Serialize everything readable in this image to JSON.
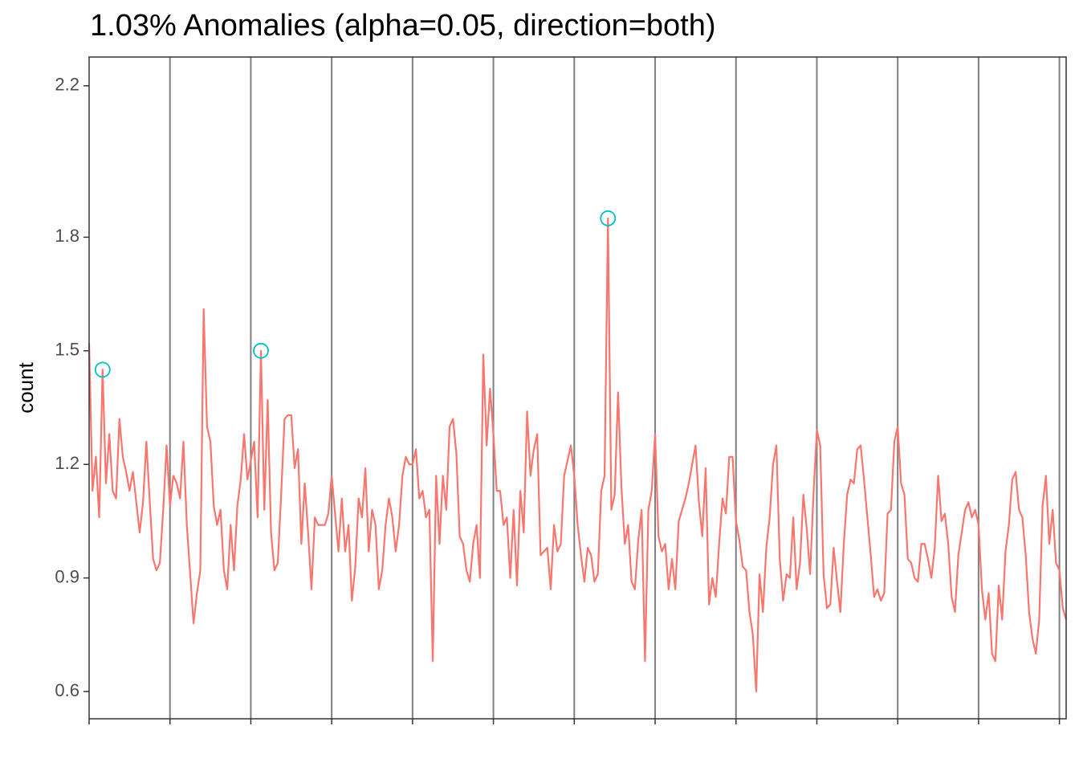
{
  "chart_data": {
    "type": "line",
    "title": "1.03% Anomalies (alpha=0.05, direction=both)",
    "y_label": "count",
    "ylim": [
      0.528,
      2.276
    ],
    "yticks": [
      {
        "value": 0.6,
        "label": "0.6"
      },
      {
        "value": 0.9,
        "label": "0.9"
      },
      {
        "value": 1.2,
        "label": "1.2"
      },
      {
        "value": 1.5,
        "label": "1.5"
      },
      {
        "value": 1.8,
        "label": "1.8"
      },
      {
        "value": 2.2,
        "label": "2.2"
      }
    ],
    "series": [
      {
        "color": "#F8766D",
        "values": [
          1.52,
          1.13,
          1.22,
          1.06,
          1.45,
          1.15,
          1.28,
          1.13,
          1.11,
          1.32,
          1.22,
          1.18,
          1.13,
          1.18,
          1.1,
          1.02,
          1.1,
          1.26,
          1.1,
          0.95,
          0.92,
          0.94,
          1.08,
          1.25,
          1.09,
          1.17,
          1.15,
          1.11,
          1.26,
          1.04,
          0.91,
          0.78,
          0.86,
          0.92,
          1.61,
          1.3,
          1.26,
          1.09,
          1.04,
          1.08,
          0.92,
          0.87,
          1.04,
          0.92,
          1.09,
          1.16,
          1.28,
          1.16,
          1.21,
          1.26,
          1.06,
          1.5,
          1.08,
          1.37,
          1.02,
          0.92,
          0.94,
          1.12,
          1.32,
          1.33,
          1.33,
          1.19,
          1.24,
          0.99,
          1.15,
          1.02,
          0.87,
          1.06,
          1.04,
          1.04,
          1.04,
          1.07,
          1.17,
          1.07,
          0.97,
          1.11,
          0.97,
          1.04,
          0.84,
          0.93,
          1.11,
          1.06,
          1.19,
          0.97,
          1.08,
          1.04,
          0.87,
          0.92,
          1.04,
          1.11,
          1.06,
          0.97,
          1.04,
          1.17,
          1.22,
          1.2,
          1.2,
          1.24,
          1.11,
          1.13,
          1.06,
          1.08,
          0.68,
          1.17,
          0.99,
          1.17,
          1.08,
          1.3,
          1.32,
          1.23,
          1.01,
          0.99,
          0.92,
          0.89,
          0.99,
          1.04,
          0.9,
          1.49,
          1.25,
          1.4,
          1.28,
          1.13,
          1.13,
          1.04,
          1.06,
          0.9,
          1.08,
          0.88,
          1.13,
          1.02,
          1.34,
          1.17,
          1.24,
          1.28,
          0.96,
          0.97,
          0.98,
          0.87,
          1.04,
          0.97,
          0.99,
          1.17,
          1.21,
          1.25,
          1.17,
          1.04,
          0.96,
          0.89,
          0.98,
          0.96,
          0.89,
          0.91,
          1.13,
          1.17,
          1.85,
          1.08,
          1.12,
          1.39,
          1.14,
          0.99,
          1.04,
          0.89,
          0.87,
          1.0,
          1.08,
          0.68,
          1.08,
          1.13,
          1.28,
          1.01,
          0.97,
          0.99,
          0.87,
          0.95,
          0.87,
          1.05,
          1.08,
          1.11,
          1.15,
          1.2,
          1.25,
          1.1,
          1.01,
          1.19,
          0.83,
          0.9,
          0.85,
          0.99,
          1.11,
          1.07,
          1.22,
          1.22,
          1.05,
          1.0,
          0.93,
          0.92,
          0.81,
          0.75,
          0.6,
          0.91,
          0.81,
          0.98,
          1.06,
          1.2,
          1.25,
          0.95,
          0.84,
          0.91,
          0.9,
          1.06,
          0.87,
          0.94,
          1.12,
          1.03,
          0.91,
          1.12,
          1.29,
          1.25,
          0.91,
          0.82,
          0.83,
          0.98,
          0.89,
          0.81,
          0.99,
          1.12,
          1.16,
          1.15,
          1.24,
          1.25,
          1.16,
          1.06,
          0.96,
          0.85,
          0.87,
          0.84,
          0.86,
          1.07,
          1.08,
          1.26,
          1.3,
          1.15,
          1.12,
          0.95,
          0.94,
          0.9,
          0.89,
          0.99,
          0.99,
          0.95,
          0.9,
          0.98,
          1.17,
          1.05,
          1.07,
          0.99,
          0.85,
          0.81,
          0.96,
          1.02,
          1.08,
          1.1,
          1.06,
          1.08,
          1.04,
          0.87,
          0.79,
          0.86,
          0.7,
          0.68,
          0.88,
          0.79,
          0.97,
          1.04,
          1.16,
          1.18,
          1.08,
          1.06,
          0.96,
          0.81,
          0.74,
          0.7,
          0.79,
          1.09,
          1.17,
          0.99,
          1.08,
          0.94,
          0.92,
          0.82,
          0.79
        ]
      },
      {
        "color": "#00BFC4",
        "marker": "circle",
        "values": [
          null,
          null,
          null,
          null,
          1.45,
          null,
          null,
          null,
          null,
          null,
          null,
          null,
          null,
          null,
          null,
          null,
          null,
          null,
          null,
          null,
          null,
          null,
          null,
          null,
          null,
          null,
          null,
          null,
          null,
          null,
          null,
          null,
          null,
          null,
          null,
          null,
          null,
          null,
          null,
          null,
          null,
          null,
          null,
          null,
          null,
          null,
          null,
          null,
          null,
          null,
          null,
          1.5,
          null,
          null,
          null,
          null,
          null,
          null,
          null,
          null,
          null,
          null,
          null,
          null,
          null,
          null,
          null,
          null,
          null,
          null,
          null,
          null,
          null,
          null,
          null,
          null,
          null,
          null,
          null,
          null,
          null,
          null,
          null,
          null,
          null,
          null,
          null,
          null,
          null,
          null,
          null,
          null,
          null,
          null,
          null,
          null,
          null,
          null,
          null,
          null,
          null,
          null,
          null,
          null,
          null,
          null,
          null,
          null,
          null,
          null,
          null,
          null,
          null,
          null,
          null,
          null,
          null,
          null,
          null,
          null,
          null,
          null,
          null,
          null,
          null,
          null,
          null,
          null,
          null,
          null,
          null,
          null,
          null,
          null,
          null,
          null,
          null,
          null,
          null,
          null,
          null,
          null,
          null,
          null,
          null,
          null,
          null,
          null,
          null,
          null,
          null,
          null,
          null,
          null,
          1.85,
          null,
          null,
          null,
          null,
          null,
          null,
          null,
          null,
          null,
          null,
          null,
          null,
          null,
          null,
          null,
          null,
          null,
          null,
          null,
          null,
          null,
          null,
          null,
          null,
          null,
          null,
          null,
          null,
          null,
          null,
          null,
          null,
          null,
          null,
          null,
          null,
          null,
          null,
          null,
          null,
          null,
          null,
          null,
          null,
          null,
          null,
          null,
          null,
          null,
          null,
          null,
          null,
          null,
          null,
          null,
          null,
          null,
          null,
          null,
          null,
          null,
          null,
          null,
          null,
          null,
          null,
          null,
          null,
          null,
          null,
          null,
          null,
          null,
          null,
          null,
          null,
          null,
          null,
          null,
          null,
          null,
          null,
          null,
          null,
          null,
          null,
          null,
          null,
          null,
          null,
          null,
          null,
          null,
          null,
          null,
          null,
          null,
          null,
          null,
          null,
          null,
          null,
          null,
          null,
          null,
          null,
          null,
          null,
          null,
          null,
          null,
          null,
          null,
          null,
          null,
          null,
          null,
          null,
          null,
          null,
          null,
          null,
          null,
          null,
          null,
          null,
          null,
          null,
          null,
          null,
          null,
          null,
          null,
          null,
          null,
          null
        ]
      }
    ]
  }
}
